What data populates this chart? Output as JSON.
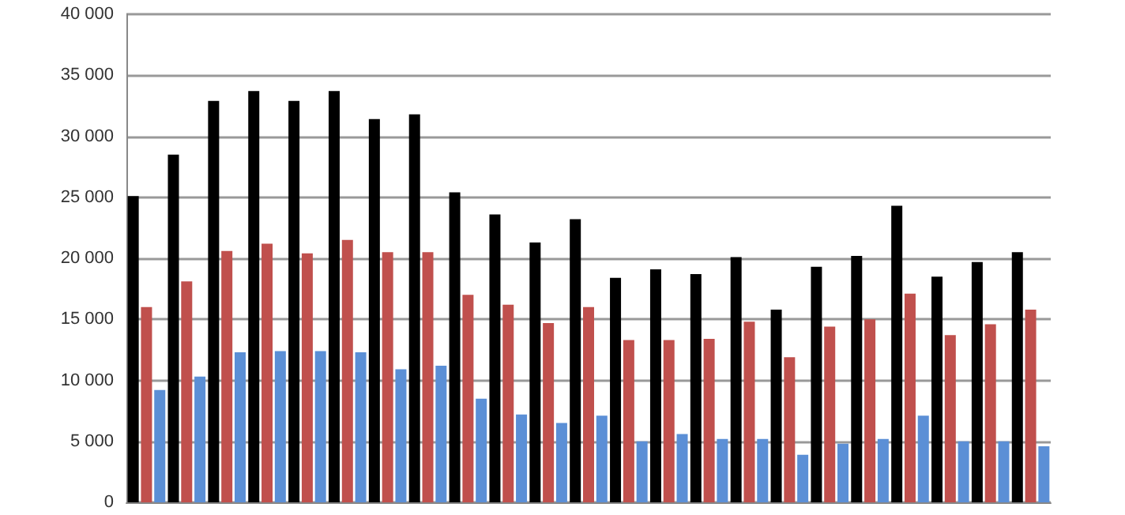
{
  "chart_data": {
    "type": "bar",
    "categories": [
      null,
      null,
      null,
      null,
      null,
      null,
      null,
      null,
      null,
      null,
      null,
      null,
      null,
      null,
      null,
      null,
      null,
      null,
      null,
      null,
      null,
      null,
      null
    ],
    "series": [
      {
        "color": "#000000",
        "values": [
          25100,
          28500,
          32900,
          33700,
          32900,
          33700,
          31400,
          31800,
          25400,
          23600,
          21300,
          23200,
          18400,
          19100,
          18700,
          20100,
          15800,
          19300,
          20200,
          24300,
          18500,
          19700,
          20500
        ]
      },
      {
        "color": "#c0504d",
        "values": [
          16000,
          18100,
          20600,
          21200,
          20400,
          21500,
          20500,
          20500,
          17000,
          16200,
          14700,
          16000,
          13300,
          13300,
          13400,
          14800,
          11900,
          14400,
          15000,
          17100,
          13700,
          14600,
          15800
        ]
      },
      {
        "color": "#5b8fd6",
        "values": [
          9200,
          10300,
          12300,
          12400,
          12400,
          12300,
          10900,
          11200,
          8500,
          7200,
          6500,
          7100,
          5000,
          5600,
          5200,
          5200,
          3900,
          4800,
          5200,
          7100,
          5000,
          5000,
          4600
        ]
      }
    ],
    "ylim": [
      0,
      40000
    ],
    "yticks": [
      0,
      {
        "value": 5000,
        "label": "5 000"
      },
      {
        "value": 10000,
        "label": "10 000"
      },
      {
        "value": 15000,
        "label": "15 000"
      },
      {
        "value": 20000,
        "label": "20 000"
      },
      {
        "value": 25000,
        "label": "25 000"
      },
      {
        "value": 30000,
        "label": "30 000"
      },
      {
        "value": 35000,
        "label": "35 000"
      },
      {
        "value": 40000,
        "label": "40 000"
      }
    ],
    "grid": "y",
    "tick_labels": "y"
  }
}
